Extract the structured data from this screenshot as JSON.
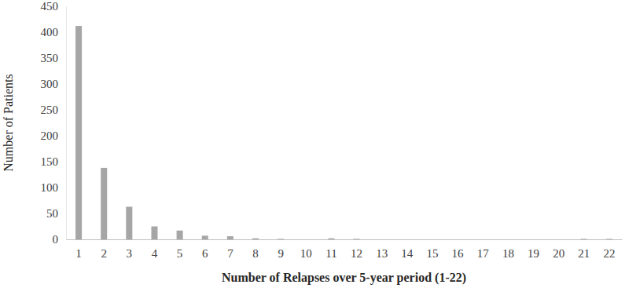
{
  "chart_data": {
    "type": "bar",
    "x_label": "Number of Relapses over 5-year period (1-22)",
    "y_label": "Number of Patients",
    "categories": [
      "1",
      "2",
      "3",
      "4",
      "5",
      "6",
      "7",
      "8",
      "9",
      "10",
      "11",
      "12",
      "13",
      "14",
      "15",
      "16",
      "17",
      "18",
      "19",
      "20",
      "21",
      "22"
    ],
    "values": [
      412,
      138,
      63,
      25,
      17,
      7,
      6,
      2,
      1,
      0,
      2,
      1,
      0,
      0,
      0,
      0,
      0,
      0,
      0,
      0,
      1,
      1
    ],
    "color": "#a6a6a6",
    "ylim": [
      0,
      450
    ],
    "yticks": [
      0,
      50,
      100,
      150,
      200,
      250,
      300,
      350,
      400,
      450
    ],
    "grid": false
  }
}
